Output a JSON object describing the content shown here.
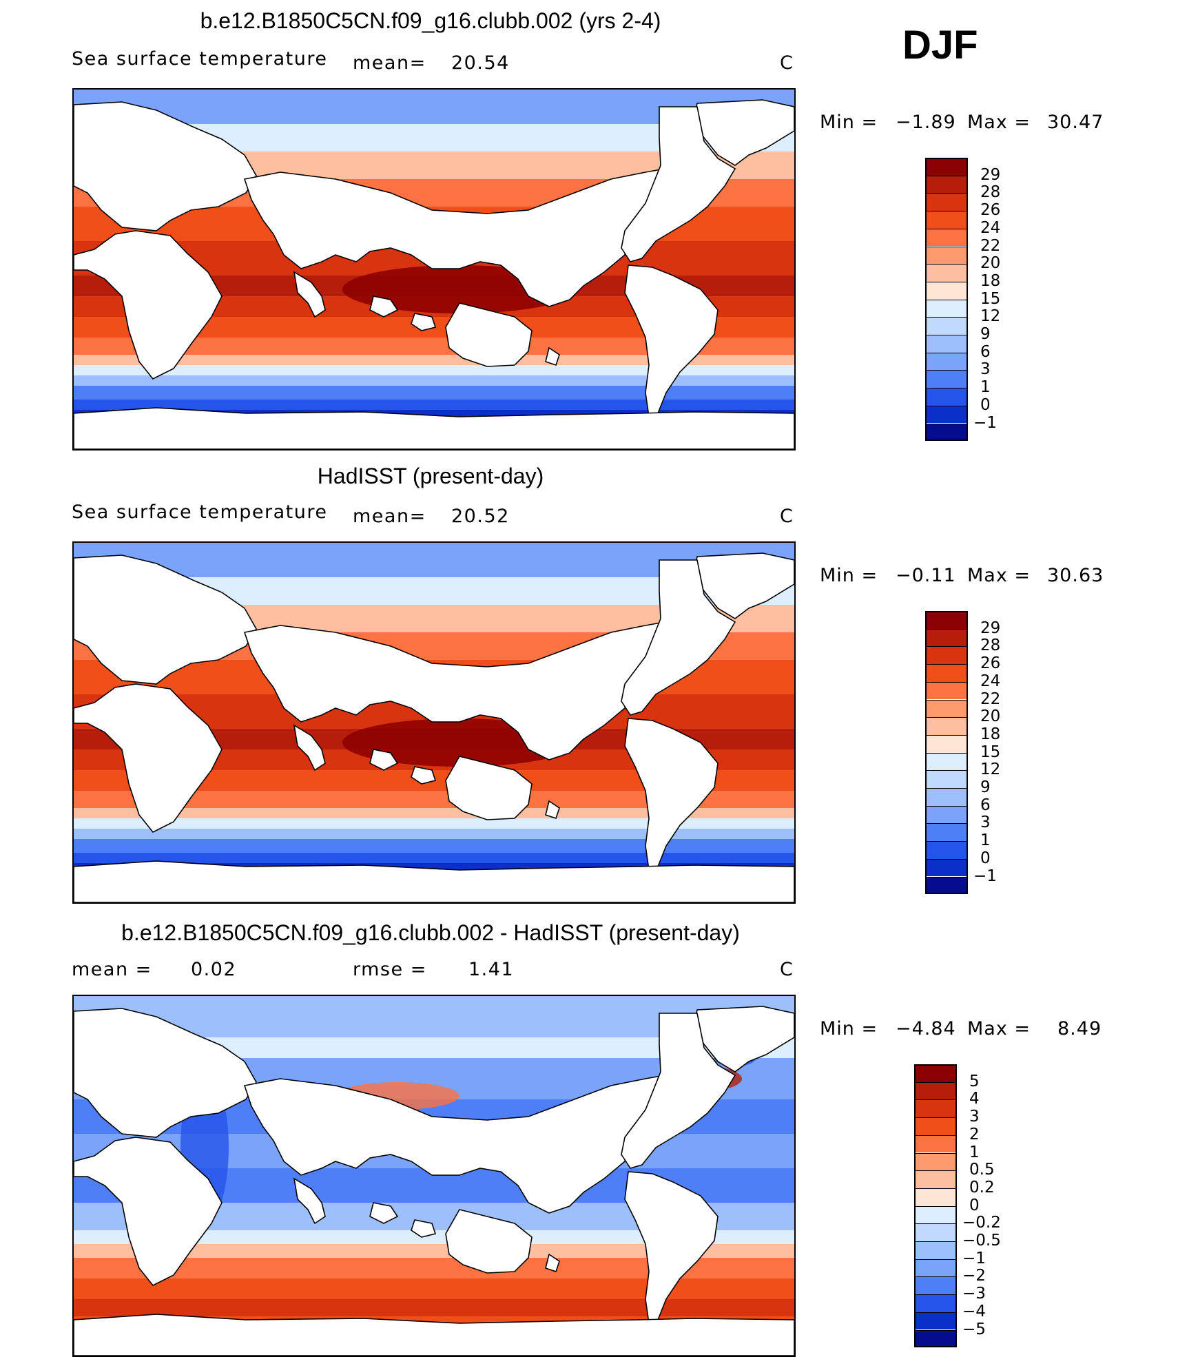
{
  "season": "DJF",
  "panels": [
    {
      "title": "b.e12.B1850C5CN.f09_g16.clubb.002 (yrs 2-4)",
      "left_text": "Sea surface temperature",
      "stat1_label": "mean=",
      "stat1_value": "20.54",
      "stat2_label": "",
      "stat2_value": "",
      "unit": "C",
      "min_label": "Min =",
      "min_value": "−1.89",
      "max_label": "Max =",
      "max_value": "30.47",
      "colorbar": {
        "labels": [
          "29",
          "28",
          "26",
          "24",
          "22",
          "20",
          "18",
          "15",
          "12",
          "9",
          "6",
          "3",
          "1",
          "0",
          "−1"
        ],
        "colors": [
          "#8b0000",
          "#b51e0a",
          "#d7340f",
          "#f14f19",
          "#fb7342",
          "#fd9a6e",
          "#fdbf9f",
          "#fee5d4",
          "#ddeefe",
          "#c1d9fd",
          "#9dc0fc",
          "#7aa4fa",
          "#4f7ff6",
          "#2554ea",
          "#0b2fc9",
          "#050d8e"
        ]
      }
    },
    {
      "title": "HadISST (present-day)",
      "left_text": "Sea surface temperature",
      "stat1_label": "mean=",
      "stat1_value": "20.52",
      "stat2_label": "",
      "stat2_value": "",
      "unit": "C",
      "min_label": "Min =",
      "min_value": "−0.11",
      "max_label": "Max =",
      "max_value": "30.63",
      "colorbar": {
        "labels": [
          "29",
          "28",
          "26",
          "24",
          "22",
          "20",
          "18",
          "15",
          "12",
          "9",
          "6",
          "3",
          "1",
          "0",
          "−1"
        ],
        "colors": [
          "#8b0000",
          "#b51e0a",
          "#d7340f",
          "#f14f19",
          "#fb7342",
          "#fd9a6e",
          "#fdbf9f",
          "#fee5d4",
          "#ddeefe",
          "#c1d9fd",
          "#9dc0fc",
          "#7aa4fa",
          "#4f7ff6",
          "#2554ea",
          "#0b2fc9",
          "#050d8e"
        ]
      }
    },
    {
      "title": "b.e12.B1850C5CN.f09_g16.clubb.002 - HadISST (present-day)",
      "left_text": "",
      "stat1_label": "mean =",
      "stat1_value": "0.02",
      "stat2_label": "rmse =",
      "stat2_value": "1.41",
      "unit": "C",
      "min_label": "Min =",
      "min_value": "−4.84",
      "max_label": "Max =",
      "max_value": "8.49",
      "colorbar": {
        "labels": [
          "5",
          "4",
          "3",
          "2",
          "1",
          "0.5",
          "0.2",
          "0",
          "−0.2",
          "−0.5",
          "−1",
          "−2",
          "−3",
          "−4",
          "−5"
        ],
        "colors": [
          "#8b0000",
          "#b51e0a",
          "#d7340f",
          "#f14f19",
          "#fb7342",
          "#fd9a6e",
          "#fdbf9f",
          "#fee5d4",
          "#ddeefe",
          "#c1d9fd",
          "#9dc0fc",
          "#7aa4fa",
          "#4f7ff6",
          "#2554ea",
          "#0b2fc9",
          "#050d8e"
        ]
      }
    }
  ]
}
